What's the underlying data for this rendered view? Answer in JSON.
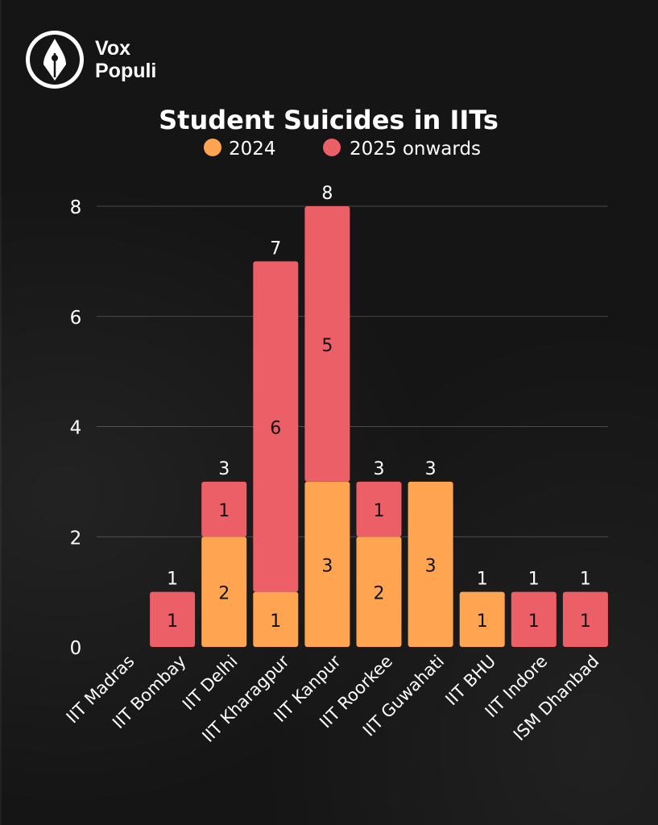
{
  "brand": {
    "line1": "Vox",
    "line2": "Populi",
    "logo_icon": "fountain-pen-nib-icon"
  },
  "chart_data": {
    "type": "bar",
    "stacked": true,
    "title": "Student Suicides in IITs",
    "xlabel": "",
    "ylabel": "",
    "ylim": [
      0,
      8
    ],
    "yticks": [
      0,
      2,
      4,
      6,
      8
    ],
    "grid": true,
    "legend_position": "top",
    "categories": [
      "IIT Madras",
      "IIT Bombay",
      "IIT Delhi",
      "IIT Kharagpur",
      "IIT Kanpur",
      "IIT Roorkee",
      "IIT Guwahati",
      "IIT BHU",
      "IIT Indore",
      "ISM Dhanbad"
    ],
    "series": [
      {
        "name": "2024",
        "color": "#FFA451",
        "values": [
          0,
          0,
          2,
          1,
          3,
          2,
          3,
          1,
          0,
          0
        ]
      },
      {
        "name": "2025 onwards",
        "color": "#EC5F67",
        "values": [
          0,
          1,
          1,
          6,
          5,
          1,
          0,
          0,
          1,
          1
        ]
      }
    ],
    "totals": [
      0,
      1,
      3,
      7,
      8,
      3,
      3,
      1,
      1,
      1
    ]
  }
}
